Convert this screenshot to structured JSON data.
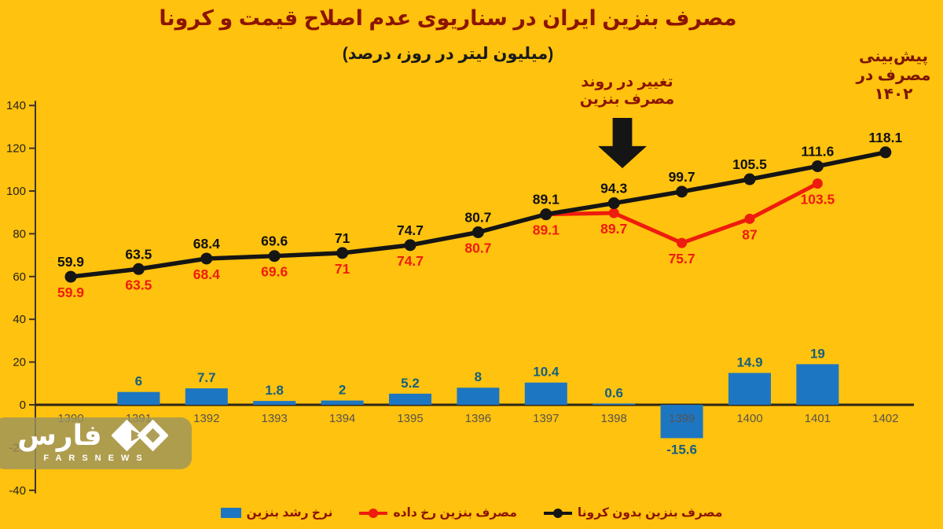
{
  "title": "مصرف بنزین ایران در سناریوی عدم اصلاح قیمت و کرونا",
  "subtitle": "(میلیون لیتر در روز، درصد)",
  "annotations": {
    "forecast": {
      "line1": "پیش‌بینی",
      "line2": "مصرف در",
      "line3": "۱۴۰۲"
    },
    "trend": {
      "line1": "تغییر در روند",
      "line2": "مصرف بنزین"
    }
  },
  "legend": {
    "items": [
      {
        "label": "نرخ رشد بنزین",
        "marker": "bar-swatch",
        "color": "#1D76C2"
      },
      {
        "label": "مصرف بنزین رخ داده",
        "marker": "line-dot",
        "color": "#EE1C0C"
      },
      {
        "label": "مصرف بنزین بدون کرونا",
        "marker": "line-dot",
        "color": "#151515"
      }
    ]
  },
  "logo": {
    "farsi": "فارس",
    "latin": "FARSNEWS"
  },
  "colors": {
    "background": "#FFC20E",
    "title": "#8C1400",
    "bar": "#1D76C2",
    "bar_label": "#15607E",
    "red_line": "#EE1C0C",
    "black_line": "#151515",
    "axis": "#3D3425",
    "axis_tick_label": "#26221C",
    "year_label": "#57534D",
    "zero_line": "#2E2517",
    "legend_label": "#8C1400",
    "logo_bg": "rgba(155,148,95,0.8)"
  },
  "chart_data": {
    "type": "combo",
    "categories": [
      "1390",
      "1391",
      "1392",
      "1393",
      "1394",
      "1395",
      "1396",
      "1397",
      "1398",
      "1399",
      "1400",
      "1401",
      "1402"
    ],
    "series": [
      {
        "name": "نرخ رشد بنزین",
        "type": "bar",
        "color": "#1D76C2",
        "label_color": "#15607E",
        "values": [
          null,
          6,
          7.7,
          1.8,
          2,
          5.2,
          8,
          10.4,
          0.6,
          -15.6,
          14.9,
          19,
          null
        ]
      },
      {
        "name": "مصرف بنزین رخ داده",
        "type": "line",
        "color": "#EE1C0C",
        "label_position": "below",
        "values": [
          59.9,
          63.5,
          68.4,
          69.6,
          71,
          74.7,
          80.7,
          89.1,
          89.7,
          75.7,
          87,
          103.5,
          null
        ]
      },
      {
        "name": "مصرف بنزین بدون کرونا",
        "type": "line",
        "color": "#151515",
        "label_position": "above",
        "values": [
          59.9,
          63.5,
          68.4,
          69.6,
          71,
          74.7,
          80.7,
          89.1,
          94.3,
          99.7,
          105.5,
          111.6,
          118.1
        ]
      }
    ],
    "ylim": [
      -40,
      140
    ],
    "ytick_step": 20,
    "grid": false,
    "legend_position": "bottom",
    "title": "مصرف بنزین ایران در سناریوی عدم اصلاح قیمت و کرونا",
    "xlabel": "",
    "ylabel": ""
  }
}
